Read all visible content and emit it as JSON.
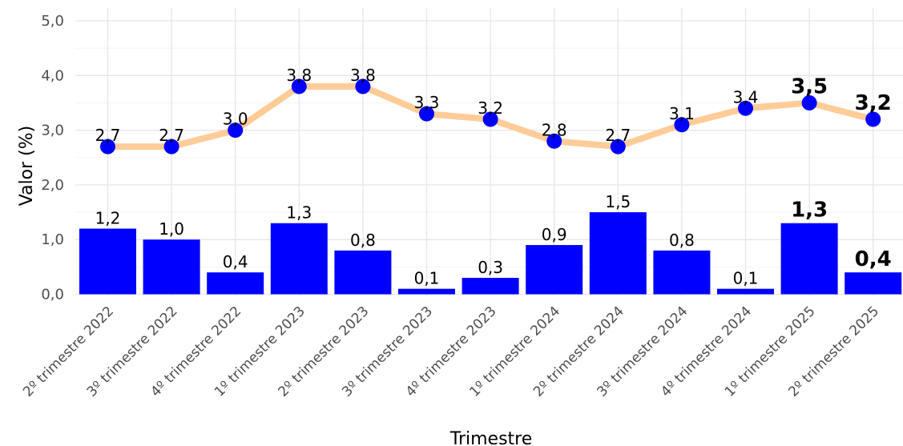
{
  "chart_data": {
    "type": "bar+line",
    "xlabel": "Trimestre",
    "ylabel": "Valor (%)",
    "ylim": [
      0,
      5
    ],
    "yticks": [
      "0,0",
      "1,0",
      "2,0",
      "3,0",
      "4,0",
      "5,0"
    ],
    "categories": [
      "2º trimestre 2022",
      "3º trimestre 2022",
      "4º trimestre 2022",
      "1º trimestre 2023",
      "2º trimestre 2023",
      "3º trimestre 2023",
      "4º trimestre 2023",
      "1º trimestre 2024",
      "2º trimestre 2024",
      "3º trimestre 2024",
      "4º trimestre 2024",
      "1º trimestre 2025",
      "2º trimestre 2025"
    ],
    "series": [
      {
        "kind": "bar",
        "color": "#0000ff",
        "values": [
          1.2,
          1.0,
          0.4,
          1.3,
          0.8,
          0.1,
          0.3,
          0.9,
          1.5,
          0.8,
          0.1,
          1.3,
          0.4
        ],
        "labels": [
          "1,2",
          "1,0",
          "0,4",
          "1,3",
          "0,8",
          "0,1",
          "0,3",
          "0,9",
          "1,5",
          "0,8",
          "0,1",
          "1,3",
          "0,4"
        ]
      },
      {
        "kind": "line",
        "line_color": "#ffcc99",
        "point_color": "#0000ff",
        "values": [
          2.7,
          2.7,
          3.0,
          3.8,
          3.8,
          3.3,
          3.2,
          2.8,
          2.7,
          3.1,
          3.4,
          3.5,
          3.2
        ],
        "labels": [
          "2,7",
          "2,7",
          "3,0",
          "3,8",
          "3,8",
          "3,3",
          "3,2",
          "2,8",
          "2,7",
          "3,1",
          "3,4",
          "3,5",
          "3,2"
        ]
      }
    ],
    "bold_label_indices": [
      11,
      12
    ],
    "grid": true,
    "legend": "none"
  }
}
